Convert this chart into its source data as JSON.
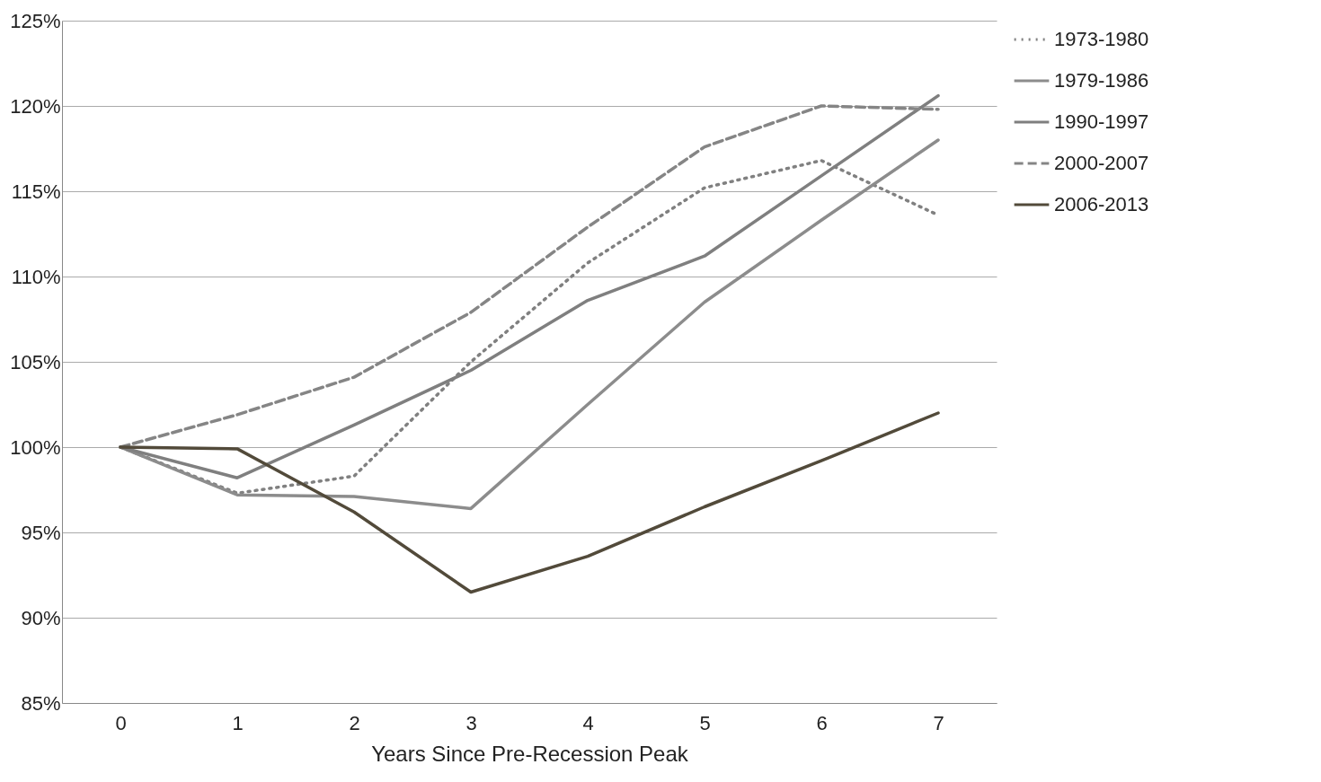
{
  "chart_data": {
    "type": "line",
    "xlabel": "Years Since Pre-Recession Peak",
    "categories": [
      "0",
      "1",
      "2",
      "3",
      "4",
      "5",
      "6",
      "7"
    ],
    "series": [
      {
        "name": "1973-1980",
        "color": "#808080",
        "line_style": "dotted",
        "values": [
          100,
          97.3,
          98.3,
          105,
          110.8,
          115.2,
          116.8,
          113.6
        ]
      },
      {
        "name": "1979-1986",
        "color": "#8c8c8c",
        "line_style": "solid",
        "values": [
          100,
          97.2,
          97.1,
          96.4,
          102.5,
          108.5,
          113.3,
          118
        ]
      },
      {
        "name": "1990-1997",
        "color": "#7f7f7f",
        "line_style": "solid",
        "values": [
          100,
          98.2,
          101.3,
          104.5,
          108.6,
          111.2,
          115.9,
          120.6
        ]
      },
      {
        "name": "2000-2007",
        "color": "#858585",
        "line_style": "dashed",
        "values": [
          100,
          101.9,
          104.1,
          107.9,
          112.9,
          117.6,
          120,
          119.8
        ]
      },
      {
        "name": "2006-2013",
        "color": "#524a3a",
        "line_style": "solid",
        "values": [
          100,
          99.9,
          96.2,
          91.5,
          93.6,
          96.5,
          99.2,
          102
        ]
      }
    ],
    "ylim": [
      85,
      125
    ],
    "yticks": [
      {
        "value": 85,
        "label": "85%"
      },
      {
        "value": 90,
        "label": "90%"
      },
      {
        "value": 95,
        "label": "95%"
      },
      {
        "value": 100,
        "label": "100%"
      },
      {
        "value": 105,
        "label": "105%"
      },
      {
        "value": 110,
        "label": "110%"
      },
      {
        "value": 115,
        "label": "115%"
      },
      {
        "value": 120,
        "label": "120%"
      },
      {
        "value": 125,
        "label": "125%"
      }
    ],
    "grid": "y",
    "legend": "right"
  }
}
